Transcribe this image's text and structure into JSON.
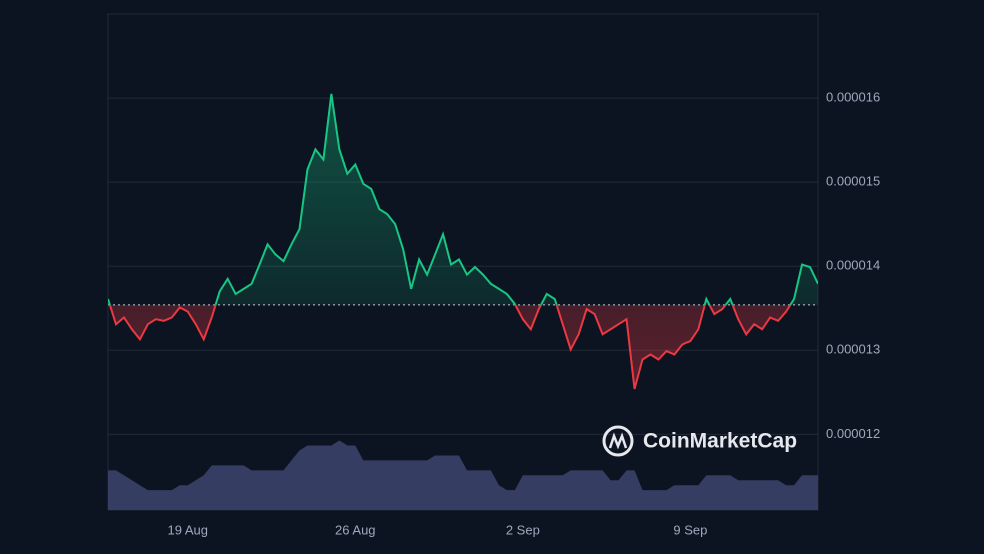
{
  "chart_data": {
    "type": "line",
    "watermark": "CoinMarketCap",
    "categories": [
      null,
      null,
      null,
      null,
      null,
      null,
      null,
      null,
      null,
      null,
      "19 Aug",
      null,
      null,
      null,
      null,
      null,
      null,
      null,
      null,
      null,
      null,
      null,
      null,
      null,
      null,
      null,
      null,
      null,
      null,
      null,
      null,
      "26 Aug",
      null,
      null,
      null,
      null,
      null,
      null,
      null,
      null,
      null,
      null,
      null,
      null,
      null,
      null,
      null,
      null,
      null,
      null,
      null,
      null,
      "2 Sep",
      null,
      null,
      null,
      null,
      null,
      null,
      null,
      null,
      null,
      null,
      null,
      null,
      null,
      null,
      null,
      null,
      null,
      null,
      null,
      null,
      "9 Sep",
      null,
      null,
      null,
      null,
      null,
      null,
      null,
      null,
      null,
      null,
      null,
      null,
      null,
      null,
      null,
      null
    ],
    "series": [
      {
        "values": [
          1.361e-05,
          1.331e-05,
          1.339e-05,
          1.325e-05,
          1.313e-05,
          1.331e-05,
          1.337e-05,
          1.335e-05,
          1.339e-05,
          1.351e-05,
          1.346e-05,
          1.331e-05,
          1.313e-05,
          1.339e-05,
          1.37e-05,
          1.385e-05,
          1.367e-05,
          1.373e-05,
          1.379e-05,
          1.402e-05,
          1.426e-05,
          1.414e-05,
          1.406e-05,
          1.426e-05,
          1.444e-05,
          1.515e-05,
          1.539e-05,
          1.527e-05,
          1.605e-05,
          1.539e-05,
          1.51e-05,
          1.521e-05,
          1.498e-05,
          1.492e-05,
          1.468e-05,
          1.462e-05,
          1.45e-05,
          1.42e-05,
          1.373e-05,
          1.408e-05,
          1.39e-05,
          1.414e-05,
          1.438e-05,
          1.402e-05,
          1.408e-05,
          1.39e-05,
          1.399e-05,
          1.39e-05,
          1.379e-05,
          1.373e-05,
          1.367e-05,
          1.355e-05,
          1.337e-05,
          1.325e-05,
          1.349e-05,
          1.367e-05,
          1.361e-05,
          1.331e-05,
          1.301e-05,
          1.319e-05,
          1.349e-05,
          1.343e-05,
          1.319e-05,
          1.325e-05,
          1.331e-05,
          1.337e-05,
          1.254e-05,
          1.289e-05,
          1.295e-05,
          1.289e-05,
          1.299e-05,
          1.295e-05,
          1.307e-05,
          1.311e-05,
          1.325e-05,
          1.361e-05,
          1.343e-05,
          1.349e-05,
          1.361e-05,
          1.337e-05,
          1.319e-05,
          1.331e-05,
          1.325e-05,
          1.339e-05,
          1.335e-05,
          1.346e-05,
          1.361e-05,
          1.402e-05,
          1.399e-05,
          1.379e-05
        ]
      },
      {
        "axis": "y2",
        "color": "#353d63",
        "values": [
          8,
          8,
          7,
          6,
          5,
          4,
          4,
          4,
          4,
          5,
          5,
          6,
          7,
          9,
          9,
          9,
          9,
          9,
          8,
          8,
          8,
          8,
          8,
          10,
          12,
          13,
          13,
          13,
          13,
          14,
          13,
          13,
          10,
          10,
          10,
          10,
          10,
          10,
          10,
          10,
          10,
          11,
          11,
          11,
          11,
          8,
          8,
          8,
          8,
          5,
          4,
          4,
          7,
          7,
          7,
          7,
          7,
          7,
          8,
          8,
          8,
          8,
          8,
          6,
          6,
          8,
          8,
          4,
          4,
          4,
          4,
          5,
          5,
          5,
          5,
          7,
          7,
          7,
          7,
          6,
          6,
          6,
          6,
          6,
          6,
          5,
          5,
          7,
          7,
          7
        ]
      }
    ],
    "baseline": 1.354e-05,
    "up_color": "#16c784",
    "down_color": "#ea3943",
    "ylim": [
      1.11e-05,
      1.7e-05
    ],
    "yticks": [
      1.2e-05,
      1.3e-05,
      1.4e-05,
      1.5e-05,
      1.6e-05
    ],
    "y2lim": [
      0,
      100
    ],
    "grid": true
  }
}
